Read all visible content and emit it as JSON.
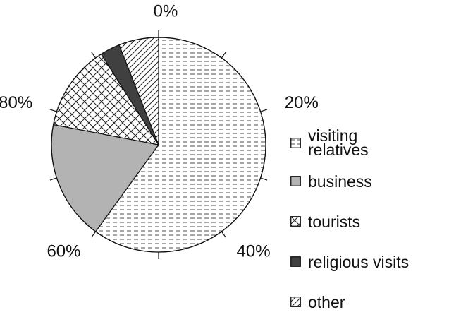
{
  "chart_data": {
    "type": "pie",
    "series": [
      {
        "name": "visiting relatives",
        "value": 60,
        "color": "#ffffff",
        "pattern": "dashes"
      },
      {
        "name": "business",
        "value": 18,
        "color": "#b3b3b3",
        "pattern": "solid"
      },
      {
        "name": "tourists",
        "value": 13,
        "color": "#ffffff",
        "pattern": "crosshatch"
      },
      {
        "name": "religious visits",
        "value": 3,
        "color": "#404040",
        "pattern": "solid"
      },
      {
        "name": "other",
        "value": 6,
        "color": "#ffffff",
        "pattern": "diagonal"
      }
    ],
    "ticks": [
      {
        "value": 0,
        "label": "0%"
      },
      {
        "value": 20,
        "label": "20%"
      },
      {
        "value": 40,
        "label": "40%"
      },
      {
        "value": 60,
        "label": "60%"
      },
      {
        "value": 80,
        "label": "80%"
      }
    ],
    "minor_ticks": [
      10,
      30,
      50,
      70,
      90
    ],
    "total": 100
  }
}
